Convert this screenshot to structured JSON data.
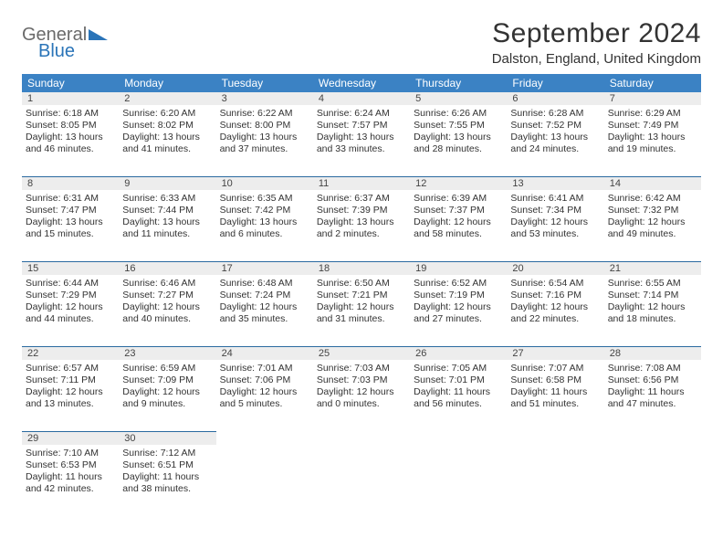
{
  "logo": {
    "text1": "General",
    "text2": "Blue",
    "text1_color": "#6a6a6a",
    "text2_color": "#2a74b8",
    "triangle_color": "#2a74b8"
  },
  "header": {
    "month_title": "September 2024",
    "location": "Dalston, England, United Kingdom"
  },
  "styling": {
    "header_bg": "#3b82c4",
    "header_text": "#ffffff",
    "daynum_bg": "#ededed",
    "daynum_border": "#2a6aa0",
    "body_text": "#333333",
    "page_bg": "#ffffff",
    "font_family": "Arial, Helvetica, sans-serif",
    "month_title_fontsize": 30,
    "location_fontsize": 15,
    "dayhead_fontsize": 12,
    "cell_fontsize": 10.5
  },
  "daynames": [
    "Sunday",
    "Monday",
    "Tuesday",
    "Wednesday",
    "Thursday",
    "Friday",
    "Saturday"
  ],
  "weeks": [
    [
      {
        "day": "1",
        "sunrise": "Sunrise: 6:18 AM",
        "sunset": "Sunset: 8:05 PM",
        "daylight1": "Daylight: 13 hours",
        "daylight2": "and 46 minutes."
      },
      {
        "day": "2",
        "sunrise": "Sunrise: 6:20 AM",
        "sunset": "Sunset: 8:02 PM",
        "daylight1": "Daylight: 13 hours",
        "daylight2": "and 41 minutes."
      },
      {
        "day": "3",
        "sunrise": "Sunrise: 6:22 AM",
        "sunset": "Sunset: 8:00 PM",
        "daylight1": "Daylight: 13 hours",
        "daylight2": "and 37 minutes."
      },
      {
        "day": "4",
        "sunrise": "Sunrise: 6:24 AM",
        "sunset": "Sunset: 7:57 PM",
        "daylight1": "Daylight: 13 hours",
        "daylight2": "and 33 minutes."
      },
      {
        "day": "5",
        "sunrise": "Sunrise: 6:26 AM",
        "sunset": "Sunset: 7:55 PM",
        "daylight1": "Daylight: 13 hours",
        "daylight2": "and 28 minutes."
      },
      {
        "day": "6",
        "sunrise": "Sunrise: 6:28 AM",
        "sunset": "Sunset: 7:52 PM",
        "daylight1": "Daylight: 13 hours",
        "daylight2": "and 24 minutes."
      },
      {
        "day": "7",
        "sunrise": "Sunrise: 6:29 AM",
        "sunset": "Sunset: 7:49 PM",
        "daylight1": "Daylight: 13 hours",
        "daylight2": "and 19 minutes."
      }
    ],
    [
      {
        "day": "8",
        "sunrise": "Sunrise: 6:31 AM",
        "sunset": "Sunset: 7:47 PM",
        "daylight1": "Daylight: 13 hours",
        "daylight2": "and 15 minutes."
      },
      {
        "day": "9",
        "sunrise": "Sunrise: 6:33 AM",
        "sunset": "Sunset: 7:44 PM",
        "daylight1": "Daylight: 13 hours",
        "daylight2": "and 11 minutes."
      },
      {
        "day": "10",
        "sunrise": "Sunrise: 6:35 AM",
        "sunset": "Sunset: 7:42 PM",
        "daylight1": "Daylight: 13 hours",
        "daylight2": "and 6 minutes."
      },
      {
        "day": "11",
        "sunrise": "Sunrise: 6:37 AM",
        "sunset": "Sunset: 7:39 PM",
        "daylight1": "Daylight: 13 hours",
        "daylight2": "and 2 minutes."
      },
      {
        "day": "12",
        "sunrise": "Sunrise: 6:39 AM",
        "sunset": "Sunset: 7:37 PM",
        "daylight1": "Daylight: 12 hours",
        "daylight2": "and 58 minutes."
      },
      {
        "day": "13",
        "sunrise": "Sunrise: 6:41 AM",
        "sunset": "Sunset: 7:34 PM",
        "daylight1": "Daylight: 12 hours",
        "daylight2": "and 53 minutes."
      },
      {
        "day": "14",
        "sunrise": "Sunrise: 6:42 AM",
        "sunset": "Sunset: 7:32 PM",
        "daylight1": "Daylight: 12 hours",
        "daylight2": "and 49 minutes."
      }
    ],
    [
      {
        "day": "15",
        "sunrise": "Sunrise: 6:44 AM",
        "sunset": "Sunset: 7:29 PM",
        "daylight1": "Daylight: 12 hours",
        "daylight2": "and 44 minutes."
      },
      {
        "day": "16",
        "sunrise": "Sunrise: 6:46 AM",
        "sunset": "Sunset: 7:27 PM",
        "daylight1": "Daylight: 12 hours",
        "daylight2": "and 40 minutes."
      },
      {
        "day": "17",
        "sunrise": "Sunrise: 6:48 AM",
        "sunset": "Sunset: 7:24 PM",
        "daylight1": "Daylight: 12 hours",
        "daylight2": "and 35 minutes."
      },
      {
        "day": "18",
        "sunrise": "Sunrise: 6:50 AM",
        "sunset": "Sunset: 7:21 PM",
        "daylight1": "Daylight: 12 hours",
        "daylight2": "and 31 minutes."
      },
      {
        "day": "19",
        "sunrise": "Sunrise: 6:52 AM",
        "sunset": "Sunset: 7:19 PM",
        "daylight1": "Daylight: 12 hours",
        "daylight2": "and 27 minutes."
      },
      {
        "day": "20",
        "sunrise": "Sunrise: 6:54 AM",
        "sunset": "Sunset: 7:16 PM",
        "daylight1": "Daylight: 12 hours",
        "daylight2": "and 22 minutes."
      },
      {
        "day": "21",
        "sunrise": "Sunrise: 6:55 AM",
        "sunset": "Sunset: 7:14 PM",
        "daylight1": "Daylight: 12 hours",
        "daylight2": "and 18 minutes."
      }
    ],
    [
      {
        "day": "22",
        "sunrise": "Sunrise: 6:57 AM",
        "sunset": "Sunset: 7:11 PM",
        "daylight1": "Daylight: 12 hours",
        "daylight2": "and 13 minutes."
      },
      {
        "day": "23",
        "sunrise": "Sunrise: 6:59 AM",
        "sunset": "Sunset: 7:09 PM",
        "daylight1": "Daylight: 12 hours",
        "daylight2": "and 9 minutes."
      },
      {
        "day": "24",
        "sunrise": "Sunrise: 7:01 AM",
        "sunset": "Sunset: 7:06 PM",
        "daylight1": "Daylight: 12 hours",
        "daylight2": "and 5 minutes."
      },
      {
        "day": "25",
        "sunrise": "Sunrise: 7:03 AM",
        "sunset": "Sunset: 7:03 PM",
        "daylight1": "Daylight: 12 hours",
        "daylight2": "and 0 minutes."
      },
      {
        "day": "26",
        "sunrise": "Sunrise: 7:05 AM",
        "sunset": "Sunset: 7:01 PM",
        "daylight1": "Daylight: 11 hours",
        "daylight2": "and 56 minutes."
      },
      {
        "day": "27",
        "sunrise": "Sunrise: 7:07 AM",
        "sunset": "Sunset: 6:58 PM",
        "daylight1": "Daylight: 11 hours",
        "daylight2": "and 51 minutes."
      },
      {
        "day": "28",
        "sunrise": "Sunrise: 7:08 AM",
        "sunset": "Sunset: 6:56 PM",
        "daylight1": "Daylight: 11 hours",
        "daylight2": "and 47 minutes."
      }
    ],
    [
      {
        "day": "29",
        "sunrise": "Sunrise: 7:10 AM",
        "sunset": "Sunset: 6:53 PM",
        "daylight1": "Daylight: 11 hours",
        "daylight2": "and 42 minutes."
      },
      {
        "day": "30",
        "sunrise": "Sunrise: 7:12 AM",
        "sunset": "Sunset: 6:51 PM",
        "daylight1": "Daylight: 11 hours",
        "daylight2": "and 38 minutes."
      },
      null,
      null,
      null,
      null,
      null
    ]
  ]
}
